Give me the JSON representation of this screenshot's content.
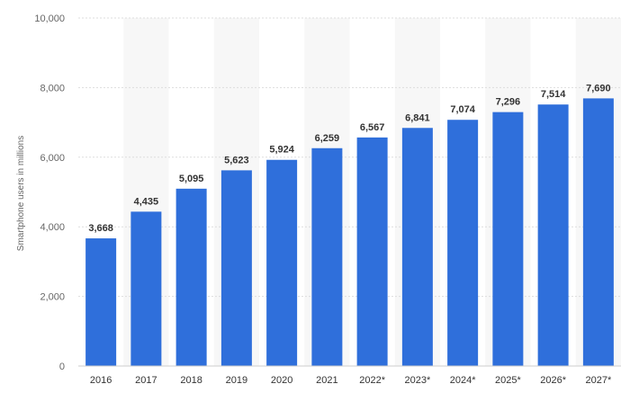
{
  "chart_data": {
    "type": "bar",
    "categories": [
      "2016",
      "2017",
      "2018",
      "2019",
      "2020",
      "2021",
      "2022*",
      "2023*",
      "2024*",
      "2025*",
      "2026*",
      "2027*"
    ],
    "values": [
      3668,
      4435,
      5095,
      5623,
      5924,
      6259,
      6567,
      6841,
      7074,
      7296,
      7514,
      7690
    ],
    "value_labels": [
      "3,668",
      "4,435",
      "5,095",
      "5,623",
      "5,924",
      "6,259",
      "6,567",
      "6,841",
      "7,074",
      "7,296",
      "7,514",
      "7,690"
    ],
    "yticks": [
      0,
      2000,
      4000,
      6000,
      8000,
      10000
    ],
    "ytick_labels": [
      "0",
      "2,000",
      "4,000",
      "6,000",
      "8,000",
      "10,000"
    ],
    "ylim": [
      0,
      10000
    ],
    "ylabel": "Smartphone users in millions",
    "xlabel": "",
    "title": "",
    "grid": "horizontal",
    "bar_color": "#2f6fdb",
    "band_color": "#f7f7f7"
  }
}
